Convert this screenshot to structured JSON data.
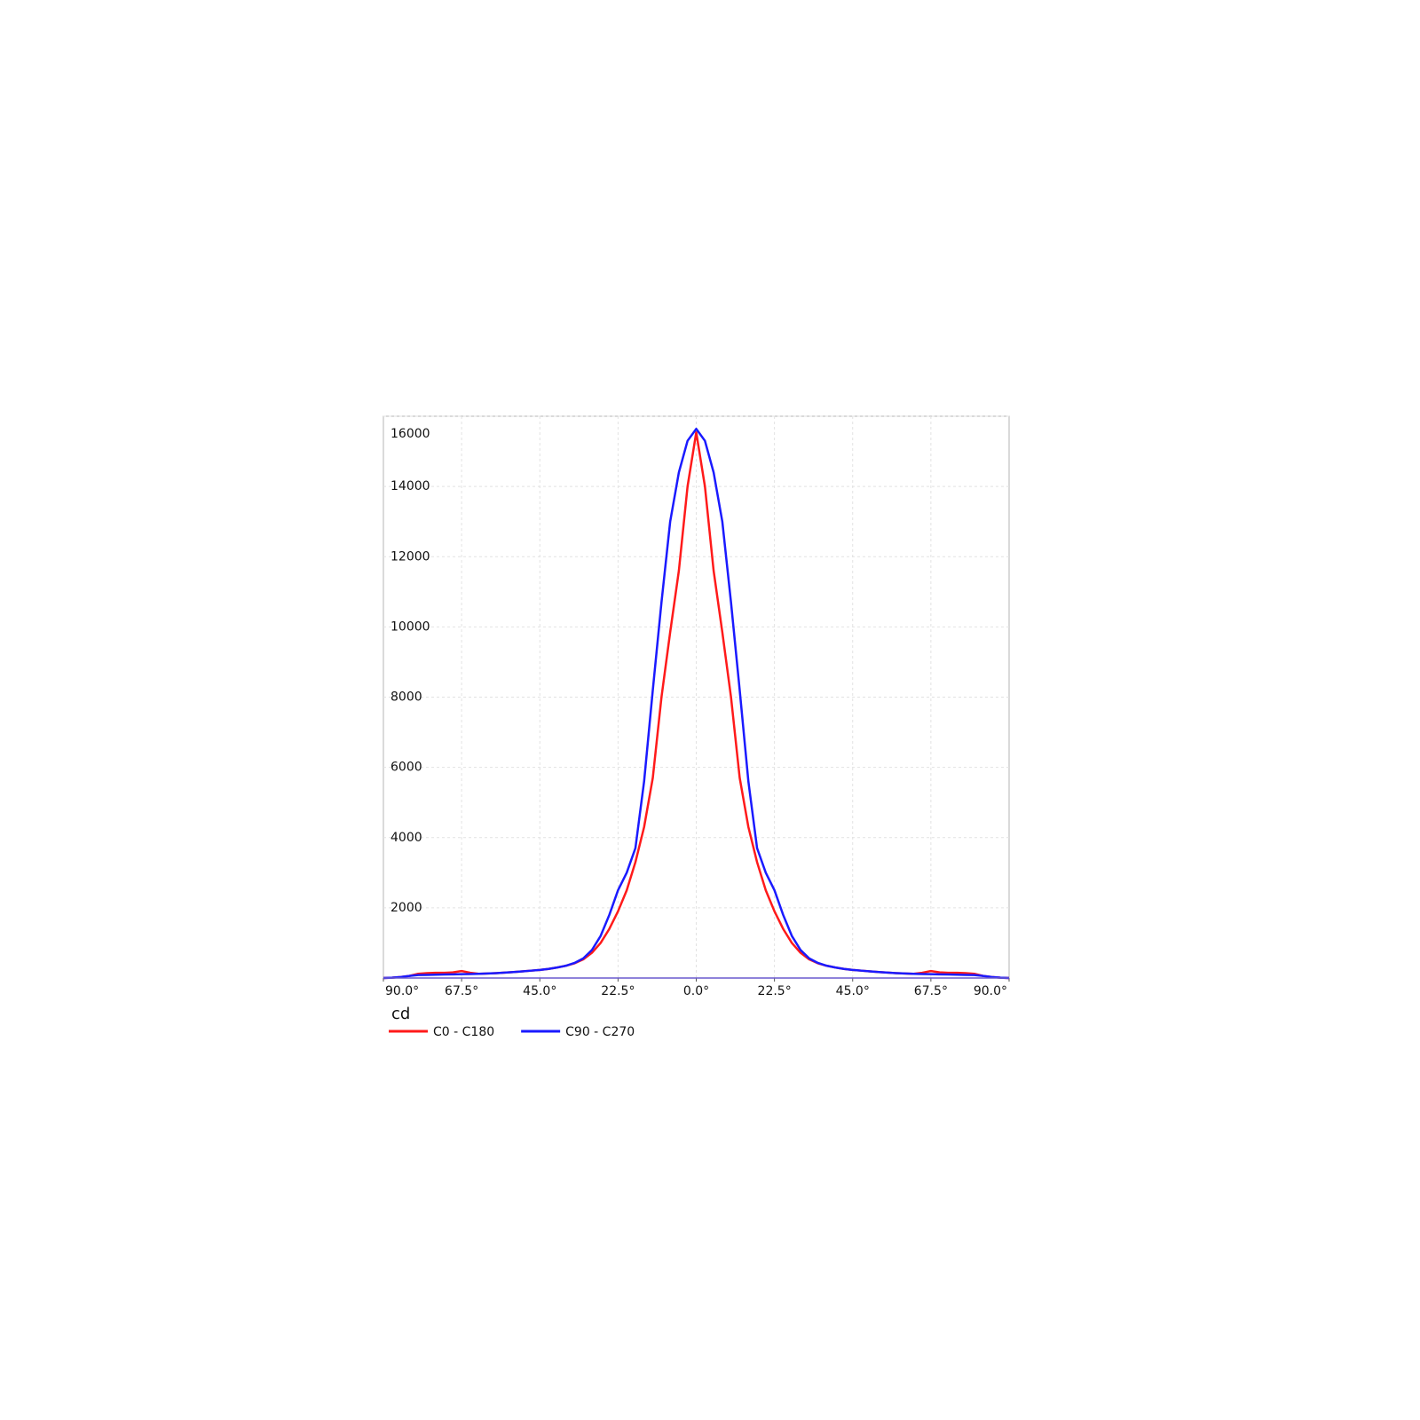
{
  "chart_data": {
    "type": "line",
    "x_label": "cd",
    "x": [
      -90,
      -87.5,
      -85,
      -82.5,
      -80,
      -77.5,
      -75,
      -72.5,
      -70,
      -67.5,
      -65,
      -62.5,
      -60,
      -57.5,
      -55,
      -52.5,
      -50,
      -47.5,
      -45,
      -42.5,
      -40,
      -37.5,
      -35,
      -32.5,
      -30,
      -27.5,
      -25,
      -22.5,
      -20,
      -17.5,
      -15,
      -12.5,
      -10,
      -7.5,
      -5,
      -2.5,
      0,
      2.5,
      5,
      7.5,
      10,
      12.5,
      15,
      17.5,
      20,
      22.5,
      25,
      27.5,
      30,
      32.5,
      35,
      37.5,
      40,
      42.5,
      45,
      47.5,
      50,
      52.5,
      55,
      57.5,
      60,
      62.5,
      65,
      67.5,
      70,
      72.5,
      75,
      77.5,
      80,
      82.5,
      85,
      87.5,
      90
    ],
    "series": [
      {
        "name": "C0 - C180",
        "color": "#ff1a1a",
        "values": [
          0,
          10,
          30,
          60,
          120,
          140,
          150,
          150,
          160,
          200,
          150,
          120,
          130,
          140,
          155,
          170,
          190,
          210,
          230,
          260,
          300,
          350,
          420,
          530,
          720,
          1000,
          1400,
          1900,
          2500,
          3300,
          4300,
          5700,
          8000,
          9850,
          11600,
          14000,
          15540,
          14000,
          11600,
          9850,
          8000,
          5700,
          4300,
          3300,
          2500,
          1900,
          1400,
          1000,
          720,
          530,
          420,
          350,
          300,
          260,
          230,
          210,
          190,
          170,
          155,
          140,
          130,
          120,
          150,
          200,
          160,
          150,
          150,
          140,
          120,
          60,
          30,
          10,
          0
        ]
      },
      {
        "name": "C90 - C270",
        "color": "#1a1aff",
        "values": [
          0,
          10,
          30,
          60,
          85,
          90,
          95,
          100,
          105,
          110,
          115,
          120,
          130,
          140,
          155,
          170,
          190,
          210,
          230,
          260,
          300,
          350,
          430,
          560,
          800,
          1200,
          1800,
          2500,
          3000,
          3700,
          5600,
          8200,
          10700,
          13000,
          14400,
          15300,
          15640,
          15300,
          14400,
          13000,
          10700,
          8200,
          5600,
          3700,
          3000,
          2500,
          1800,
          1200,
          800,
          560,
          430,
          350,
          300,
          260,
          230,
          210,
          190,
          170,
          155,
          140,
          130,
          120,
          115,
          110,
          105,
          100,
          95,
          90,
          85,
          60,
          30,
          10,
          0
        ]
      }
    ],
    "xlim": [
      -90,
      90
    ],
    "xticks": [
      {
        "value": -90,
        "label": "90.0°"
      },
      {
        "value": -67.5,
        "label": "67.5°"
      },
      {
        "value": -45,
        "label": "45.0°"
      },
      {
        "value": -22.5,
        "label": "22.5°"
      },
      {
        "value": 0,
        "label": "0.0°"
      },
      {
        "value": 22.5,
        "label": "22.5°"
      },
      {
        "value": 45,
        "label": "45.0°"
      },
      {
        "value": 67.5,
        "label": "67.5°"
      },
      {
        "value": 90,
        "label": "90.0°"
      }
    ],
    "ylim": [
      0,
      16000
    ],
    "yticks": [
      2000,
      4000,
      6000,
      8000,
      10000,
      12000,
      14000,
      16000
    ],
    "grid": true
  }
}
